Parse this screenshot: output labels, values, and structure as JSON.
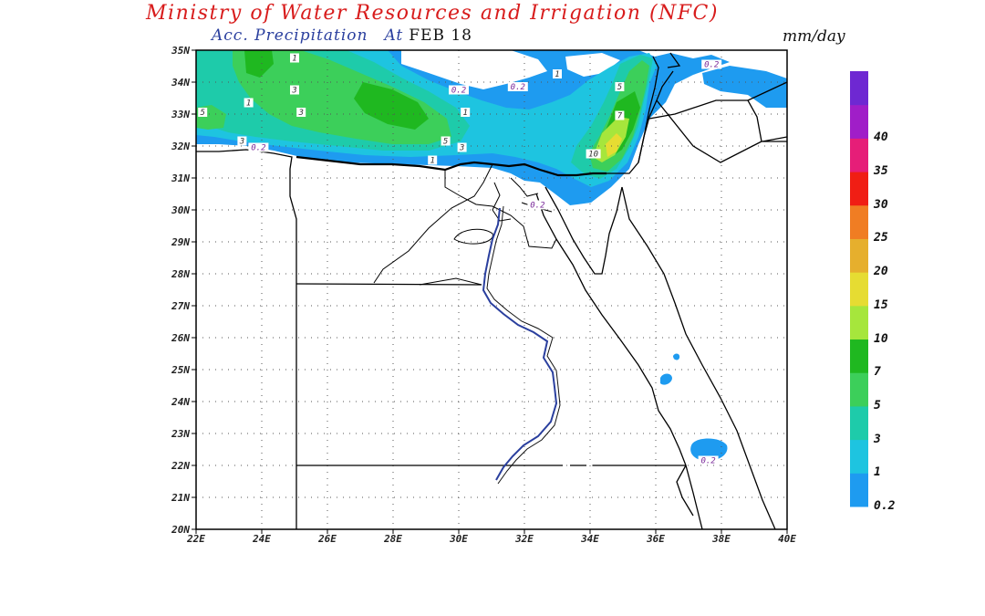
{
  "header": {
    "title": "Ministry of Water Resources and Irrigation (NFC)",
    "subtitle_product": "Acc. Precipitation",
    "subtitle_at": "At",
    "subtitle_date": "FEB 18",
    "units": "mm/day"
  },
  "map": {
    "lon_range": [
      22,
      40
    ],
    "lat_range": [
      20,
      35
    ],
    "x_ticks": [
      "22E",
      "24E",
      "26E",
      "28E",
      "30E",
      "32E",
      "34E",
      "36E",
      "38E",
      "40E"
    ],
    "y_ticks": [
      "20N",
      "21N",
      "22N",
      "23N",
      "24N",
      "25N",
      "26N",
      "27N",
      "28N",
      "29N",
      "30N",
      "31N",
      "32N",
      "33N",
      "34N",
      "35N"
    ],
    "grid": "dotted"
  },
  "legend": {
    "bins": [
      {
        "label": "0.2",
        "color": "#1e9bf0"
      },
      {
        "label": "1",
        "color": "#1ec4e0"
      },
      {
        "label": "3",
        "color": "#1ecbaa"
      },
      {
        "label": "5",
        "color": "#3ccf5a"
      },
      {
        "label": "7",
        "color": "#1fb820"
      },
      {
        "label": "10",
        "color": "#a6e63c"
      },
      {
        "label": "15",
        "color": "#e6dc32"
      },
      {
        "label": "20",
        "color": "#e6af2d"
      },
      {
        "label": "25",
        "color": "#f07d23"
      },
      {
        "label": "30",
        "color": "#f01e14"
      },
      {
        "label": "35",
        "color": "#e61e78"
      },
      {
        "label": "40",
        "color": "#a01ec8"
      },
      {
        "label": "",
        "color": "#6e28d2"
      }
    ]
  },
  "contour_labels": [
    {
      "text": "0.2",
      "lon": 30.0,
      "lat": 33.7
    },
    {
      "text": "0.2",
      "lon": 31.8,
      "lat": 33.8
    },
    {
      "text": "0.2",
      "lon": 37.7,
      "lat": 34.5
    },
    {
      "text": "0.2",
      "lon": 23.9,
      "lat": 31.9
    },
    {
      "text": "0.2",
      "lon": 32.4,
      "lat": 30.1
    },
    {
      "text": "0.2",
      "lon": 37.6,
      "lat": 22.1
    },
    {
      "text": "1",
      "lon": 25.0,
      "lat": 34.7
    },
    {
      "text": "1",
      "lon": 30.2,
      "lat": 33.0
    },
    {
      "text": "1",
      "lon": 33.0,
      "lat": 34.2
    },
    {
      "text": "1",
      "lon": 23.6,
      "lat": 33.3
    },
    {
      "text": "1",
      "lon": 29.2,
      "lat": 31.5
    },
    {
      "text": "3",
      "lon": 25.0,
      "lat": 33.7
    },
    {
      "text": "3",
      "lon": 25.2,
      "lat": 33.0
    },
    {
      "text": "3",
      "lon": 30.1,
      "lat": 31.9
    },
    {
      "text": "3",
      "lon": 23.4,
      "lat": 32.1
    },
    {
      "text": "5",
      "lon": 22.2,
      "lat": 33.0
    },
    {
      "text": "5",
      "lon": 29.6,
      "lat": 32.1
    },
    {
      "text": "5",
      "lon": 34.9,
      "lat": 33.8
    },
    {
      "text": "7",
      "lon": 34.9,
      "lat": 32.9
    },
    {
      "text": "10",
      "lon": 34.1,
      "lat": 31.7
    }
  ]
}
